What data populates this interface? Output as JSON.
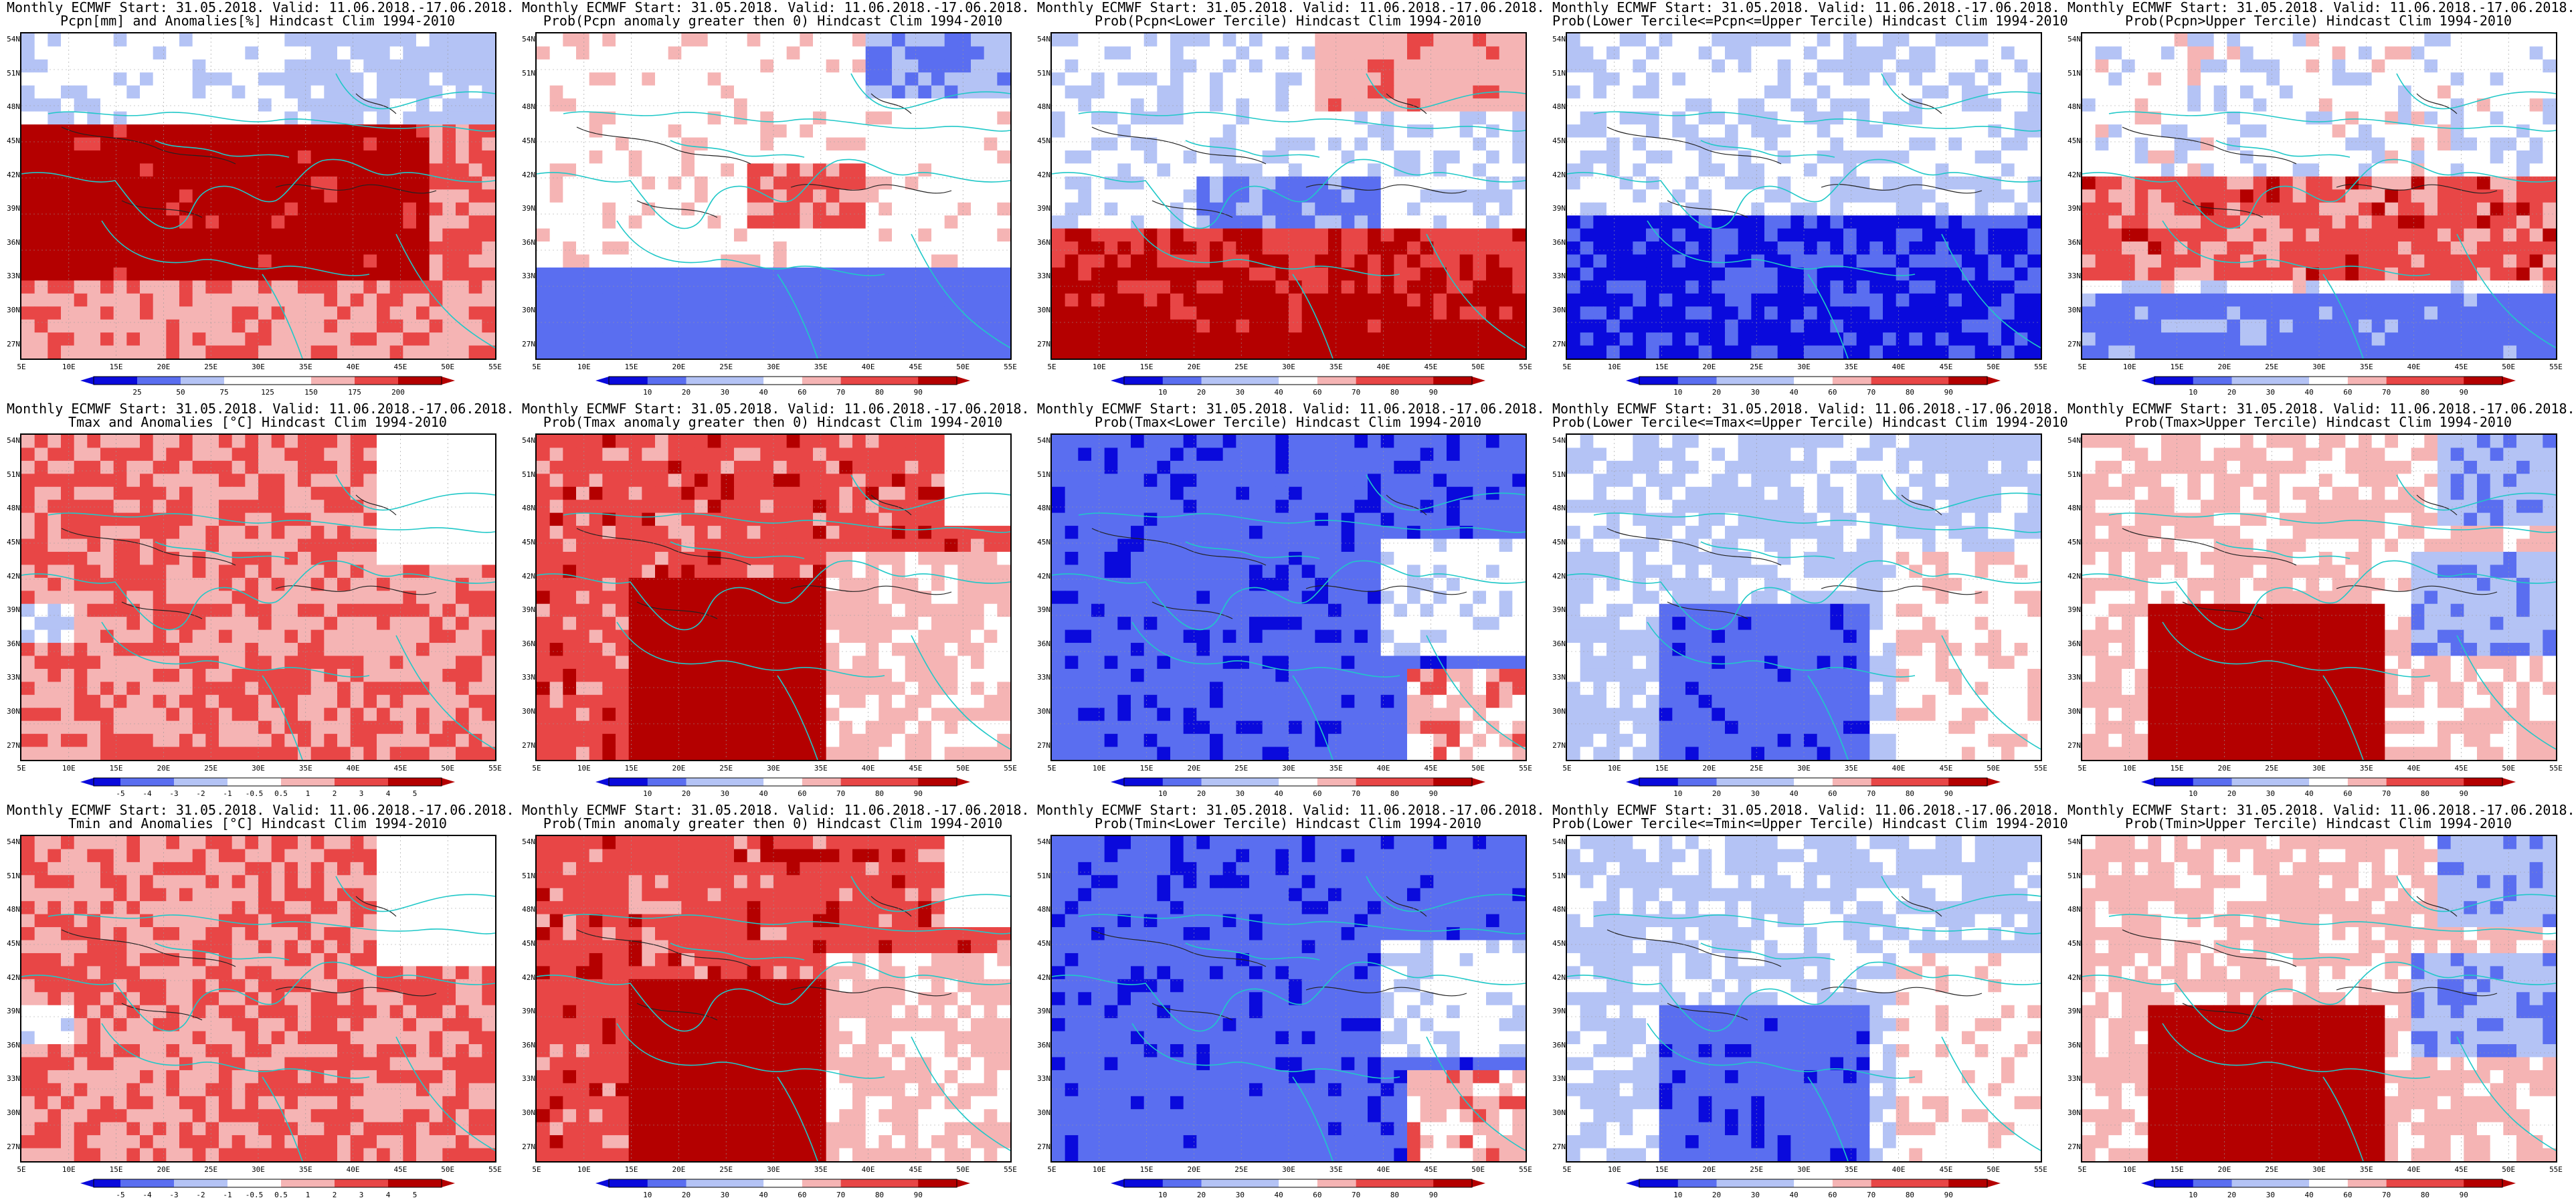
{
  "figure": {
    "header_line1": "Monthly ECMWF Start: 31.05.2018. Valid: 11.06.2018.-17.06.2018.",
    "x_ticks": [
      "5E",
      "10E",
      "15E",
      "20E",
      "25E",
      "30E",
      "35E",
      "40E",
      "45E",
      "50E",
      "55E"
    ],
    "y_ticks": [
      "54N",
      "51N",
      "48N",
      "45N",
      "42N",
      "39N",
      "36N",
      "33N",
      "30N",
      "27N"
    ],
    "colors": {
      "deep_blue": "#0a0adc",
      "mid_blue": "#5a6ef0",
      "light_blue": "#b4c3f5",
      "white": "#ffffff",
      "light_red": "#f5b4b4",
      "mid_red": "#e84646",
      "deep_red": "#b40000",
      "coast": "#20c8c8"
    },
    "colorbars": {
      "pcpn_anom": [
        "25",
        "50",
        "75",
        "125",
        "150",
        "175",
        "200"
      ],
      "temp_anom": [
        "-5",
        "-4",
        "-3",
        "-2",
        "-1",
        "-0.5",
        "0.5",
        "1",
        "2",
        "3",
        "4",
        "5"
      ],
      "prob": [
        "10",
        "20",
        "30",
        "40",
        "60",
        "70",
        "80",
        "90"
      ]
    }
  },
  "chart_data": [
    {
      "type": "heatmap",
      "row": 1,
      "col": 1,
      "title": "Monthly ECMWF Start: 31.05.2018. Valid: 11.06.2018.-17.06.2018.",
      "subtitle": "Pcpn[mm] and Anomalies[%] Hindcast Clim 1994-2010",
      "colorbar": "pcpn_anom",
      "pattern": "pcpn_anom"
    },
    {
      "type": "heatmap",
      "row": 1,
      "col": 2,
      "title": "Monthly ECMWF Start: 31.05.2018. Valid: 11.06.2018.-17.06.2018.",
      "subtitle": "Prob(Pcpn anomaly greater then 0) Hindcast Clim 1994-2010",
      "colorbar": "prob",
      "pattern": "pcpn_prob0"
    },
    {
      "type": "heatmap",
      "row": 1,
      "col": 3,
      "title": "Monthly ECMWF Start: 31.05.2018. Valid: 11.06.2018.-17.06.2018.",
      "subtitle": "Prob(Pcpn<Lower Tercile) Hindcast Clim 1994-2010",
      "colorbar": "prob",
      "pattern": "pcpn_lower"
    },
    {
      "type": "heatmap",
      "row": 1,
      "col": 4,
      "title": "Monthly ECMWF Start: 31.05.2018. Valid: 11.06.2018.-17.06.2018.",
      "subtitle": "Prob(Lower Tercile<=Pcpn<=Upper Tercile) Hindcast Clim 1994-2010",
      "colorbar": "prob",
      "pattern": "pcpn_mid"
    },
    {
      "type": "heatmap",
      "row": 1,
      "col": 5,
      "title": "Monthly ECMWF Start: 31.05.2018. Valid: 11.06.2018.-17.06.2018.",
      "subtitle": "Prob(Pcpn>Upper Tercile) Hindcast Clim 1994-2010",
      "colorbar": "prob",
      "pattern": "pcpn_upper"
    },
    {
      "type": "heatmap",
      "row": 2,
      "col": 1,
      "title": "Monthly ECMWF Start: 31.05.2018. Valid: 11.06.2018.-17.06.2018.",
      "subtitle": "Tmax and Anomalies [°C] Hindcast Clim 1994-2010",
      "colorbar": "temp_anom",
      "pattern": "warm_light"
    },
    {
      "type": "heatmap",
      "row": 2,
      "col": 2,
      "title": "Monthly ECMWF Start: 31.05.2018. Valid: 11.06.2018.-17.06.2018.",
      "subtitle": "Prob(Tmax anomaly greater then 0) Hindcast Clim 1994-2010",
      "colorbar": "prob",
      "pattern": "warm_strong"
    },
    {
      "type": "heatmap",
      "row": 2,
      "col": 3,
      "title": "Monthly ECMWF Start: 31.05.2018. Valid: 11.06.2018.-17.06.2018.",
      "subtitle": "Prob(Tmax<Lower Tercile) Hindcast Clim 1994-2010",
      "colorbar": "prob",
      "pattern": "cold_strong"
    },
    {
      "type": "heatmap",
      "row": 2,
      "col": 4,
      "title": "Monthly ECMWF Start: 31.05.2018. Valid: 11.06.2018.-17.06.2018.",
      "subtitle": "Prob(Lower Tercile<=Tmax<=Upper Tercile) Hindcast Clim 1994-2010",
      "colorbar": "prob",
      "pattern": "cold_mid"
    },
    {
      "type": "heatmap",
      "row": 2,
      "col": 5,
      "title": "Monthly ECMWF Start: 31.05.2018. Valid: 11.06.2018.-17.06.2018.",
      "subtitle": "Prob(Tmax>Upper Tercile) Hindcast Clim 1994-2010",
      "colorbar": "prob",
      "pattern": "warm_mixed"
    },
    {
      "type": "heatmap",
      "row": 3,
      "col": 1,
      "title": "Monthly ECMWF Start: 31.05.2018. Valid: 11.06.2018.-17.06.2018.",
      "subtitle": "Tmin and Anomalies [°C] Hindcast Clim 1994-2010",
      "colorbar": "temp_anom",
      "pattern": "warm_light"
    },
    {
      "type": "heatmap",
      "row": 3,
      "col": 2,
      "title": "Monthly ECMWF Start: 31.05.2018. Valid: 11.06.2018.-17.06.2018.",
      "subtitle": "Prob(Tmin anomaly greater then 0) Hindcast Clim 1994-2010",
      "colorbar": "prob",
      "pattern": "warm_strong"
    },
    {
      "type": "heatmap",
      "row": 3,
      "col": 3,
      "title": "Monthly ECMWF Start: 31.05.2018. Valid: 11.06.2018.-17.06.2018.",
      "subtitle": "Prob(Tmin<Lower Tercile) Hindcast Clim 1994-2010",
      "colorbar": "prob",
      "pattern": "cold_strong"
    },
    {
      "type": "heatmap",
      "row": 3,
      "col": 4,
      "title": "Monthly ECMWF Start: 31.05.2018. Valid: 11.06.2018.-17.06.2018.",
      "subtitle": "Prob(Lower Tercile<=Tmin<=Upper Tercile) Hindcast Clim 1994-2010",
      "colorbar": "prob",
      "pattern": "cold_mid"
    },
    {
      "type": "heatmap",
      "row": 3,
      "col": 5,
      "title": "Monthly ECMWF Start: 31.05.2018. Valid: 11.06.2018.-17.06.2018.",
      "subtitle": "Prob(Tmin>Upper Tercile) Hindcast Clim 1994-2010",
      "colorbar": "prob",
      "pattern": "warm_mixed"
    }
  ]
}
